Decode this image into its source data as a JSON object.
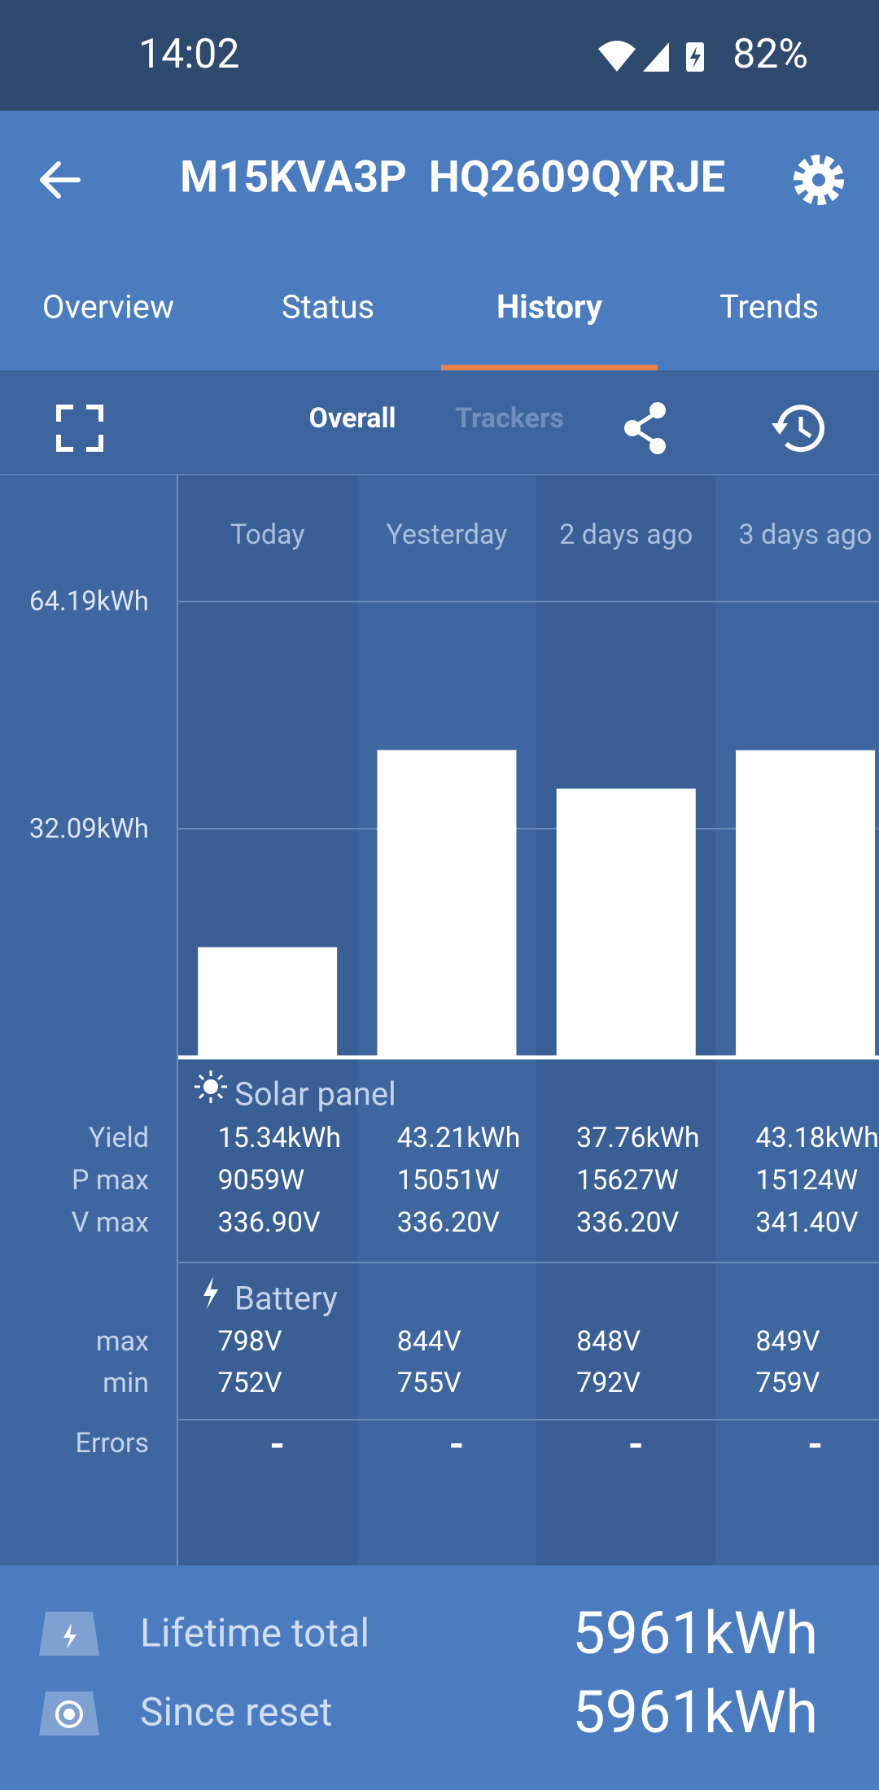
{
  "status_bar": {
    "time": "14:02",
    "battery": "82%"
  },
  "header": {
    "title": "M15KVA3P  HQ2609QYRJE"
  },
  "tabs": {
    "items": [
      "Overview",
      "Status",
      "History",
      "Trends"
    ],
    "active": 2
  },
  "toolbar": {
    "overall": "Overall",
    "trackers": "Trackers"
  },
  "chart_data": {
    "type": "bar",
    "categories": [
      "Today",
      "Yesterday",
      "2 days ago",
      "3 days ago"
    ],
    "values": [
      15.34,
      43.21,
      37.76,
      43.18
    ],
    "color": "#ffffff",
    "ylim": [
      0,
      64.19
    ],
    "yticks": [
      {
        "value": 64.19,
        "label": "64.19kWh"
      },
      {
        "value": 32.09,
        "label": "32.09kWh"
      }
    ],
    "grid": true
  },
  "stats": {
    "sections": [
      {
        "title": "Solar panel",
        "rows": [
          {
            "label": "Yield",
            "values": [
              "15.34kWh",
              "43.21kWh",
              "37.76kWh",
              "43.18kWh"
            ]
          },
          {
            "label": "P max",
            "values": [
              "9059W",
              "15051W",
              "15627W",
              "15124W"
            ]
          },
          {
            "label": "V max",
            "values": [
              "336.90V",
              "336.20V",
              "336.20V",
              "341.40V"
            ]
          }
        ]
      },
      {
        "title": "Battery",
        "rows": [
          {
            "label": "max",
            "values": [
              "798V",
              "844V",
              "848V",
              "849V"
            ]
          },
          {
            "label": "min",
            "values": [
              "752V",
              "755V",
              "792V",
              "759V"
            ]
          }
        ]
      }
    ],
    "errors": {
      "label": "Errors",
      "values": [
        "-",
        "-",
        "-",
        "-"
      ]
    }
  },
  "footer": {
    "rows": [
      {
        "label": "Lifetime total",
        "value": "5961kWh"
      },
      {
        "label": "Since reset",
        "value": "5961kWh"
      }
    ]
  }
}
